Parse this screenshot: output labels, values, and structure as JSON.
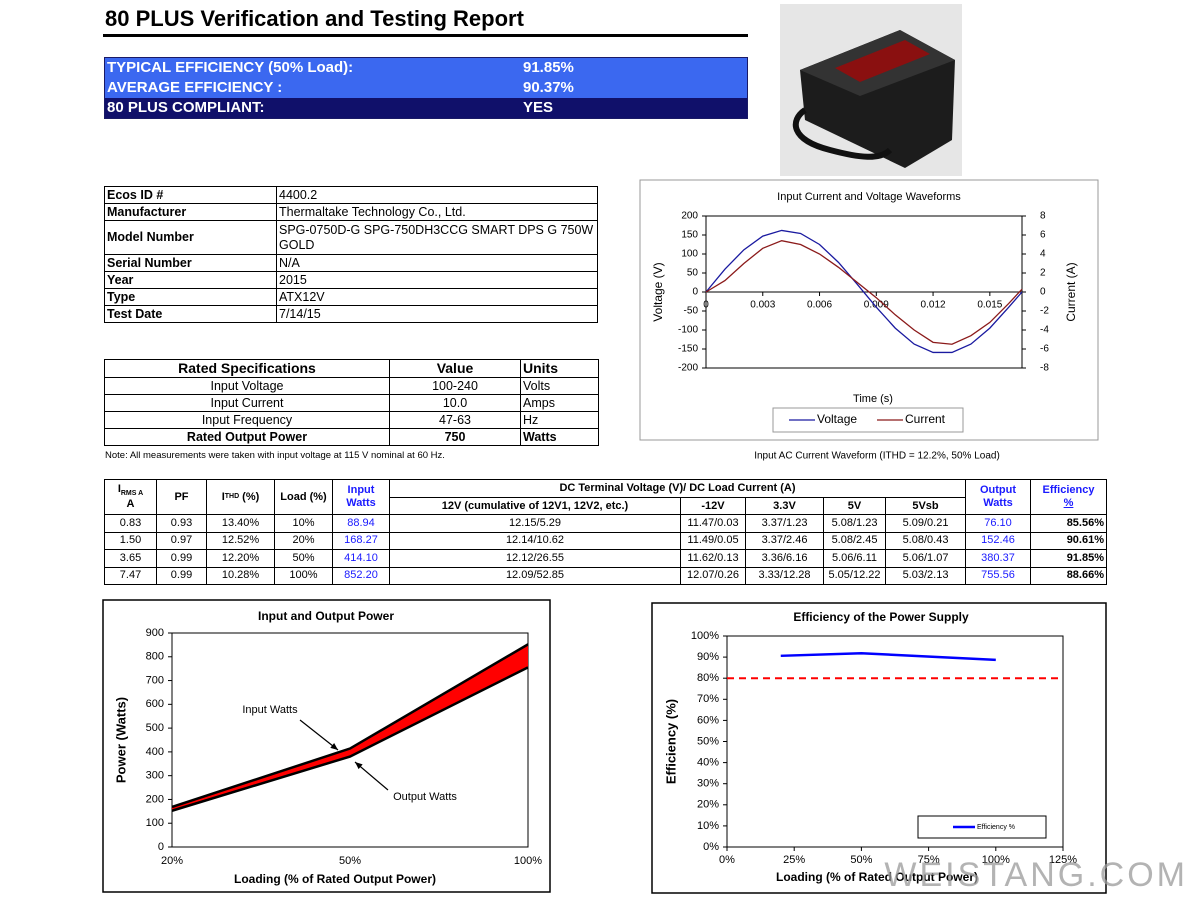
{
  "header": {
    "title": "80 PLUS Verification and Testing Report"
  },
  "summary": {
    "rows": [
      [
        "TYPICAL EFFICIENCY (50% Load):",
        "91.85%"
      ],
      [
        "AVERAGE EFFICIENCY :",
        "90.37%"
      ],
      [
        "80 PLUS COMPLIANT:",
        "YES"
      ]
    ]
  },
  "info": {
    "rows": [
      [
        "Ecos ID #",
        "4400.2"
      ],
      [
        "Manufacturer",
        "Thermaltake Technology Co., Ltd."
      ],
      [
        "Model Number",
        "SPG-0750D-G SPG-750DH3CCG SMART DPS G 750W GOLD"
      ],
      [
        "Serial Number",
        "N/A"
      ],
      [
        "Year",
        "2015"
      ],
      [
        "Type",
        "ATX12V"
      ],
      [
        "Test Date",
        "7/14/15"
      ]
    ]
  },
  "rated": {
    "header": [
      "Rated Specifications",
      "Value",
      "Units"
    ],
    "rows": [
      [
        "Input Voltage",
        "100-240",
        "Volts"
      ],
      [
        "Input Current",
        "10.0",
        "Amps"
      ],
      [
        "Input Frequency",
        "47-63",
        "Hz"
      ],
      [
        "Rated Output Power",
        "750",
        "Watts"
      ]
    ]
  },
  "note": "Note: All measurements were taken with input voltage at 115 V nominal at 60 Hz.",
  "load_table": {
    "headers": {
      "irms": {
        "main": "I",
        "sub": "RMS A",
        "unit": "A"
      },
      "pf": "PF",
      "ithd": {
        "main": "I",
        "sub": "THD",
        "unit": "(%)"
      },
      "load": "Load (%)",
      "input": "Input Watts",
      "dc_title": "DC Terminal Voltage (V)/ DC Load Current (A)",
      "dc_cols": [
        "12V (cumulative of 12V1, 12V2, etc.)",
        "-12V",
        "3.3V",
        "5V",
        "5Vsb"
      ],
      "output": "Output Watts",
      "efficiency": {
        "main": "Efficiency",
        "unit": "%"
      }
    },
    "rows": [
      [
        "0.83",
        "0.93",
        "13.40%",
        "10%",
        "88.94",
        "12.15/5.29",
        "11.47/0.03",
        "3.37/1.23",
        "5.08/1.23",
        "5.09/0.21",
        "76.10",
        "85.56%"
      ],
      [
        "1.50",
        "0.97",
        "12.52%",
        "20%",
        "168.27",
        "12.14/10.62",
        "11.49/0.05",
        "3.37/2.46",
        "5.08/2.45",
        "5.08/0.43",
        "152.46",
        "90.61%"
      ],
      [
        "3.65",
        "0.99",
        "12.20%",
        "50%",
        "414.10",
        "12.12/26.55",
        "11.62/0.13",
        "3.36/6.16",
        "5.06/6.11",
        "5.06/1.07",
        "380.37",
        "91.85%"
      ],
      [
        "7.47",
        "0.99",
        "10.28%",
        "100%",
        "852.20",
        "12.09/52.85",
        "12.07/0.26",
        "3.33/12.28",
        "5.05/12.22",
        "5.03/2.13",
        "755.56",
        "88.66%"
      ]
    ]
  },
  "watermark": "WEISTANG.COM",
  "chart_data": [
    {
      "type": "line",
      "title": "Input Current and Voltage Waveforms",
      "x_label": "Time (s)",
      "y_label": "Voltage (V)",
      "y2_label": "Current (A)",
      "caption": "Input AC Current Waveform (ITHD = 12.2%, 50% Load)",
      "x": [
        0,
        0.001,
        0.002,
        0.003,
        0.004,
        0.005,
        0.006,
        0.007,
        0.008,
        0.009,
        0.01,
        0.011,
        0.012,
        0.013,
        0.014,
        0.015,
        0.016,
        0.0167
      ],
      "series": [
        {
          "name": "Voltage",
          "color": "#1a1aa0",
          "values": [
            0,
            60,
            111,
            147,
            162,
            154,
            125,
            78,
            20,
            -40,
            -95,
            -137,
            -159,
            -159,
            -137,
            -95,
            -40,
            0
          ]
        },
        {
          "name": "Current",
          "color": "#8b1a1a",
          "axis": "y2",
          "values": [
            0,
            1.2,
            3.0,
            4.6,
            5.4,
            5.0,
            4.0,
            2.6,
            1.0,
            -0.6,
            -2.4,
            -4.0,
            -5.3,
            -5.5,
            -4.6,
            -3.2,
            -1.2,
            0.3
          ]
        }
      ],
      "xlim": [
        0,
        0.0167
      ],
      "xticks": [
        0,
        0.003,
        0.006,
        0.009,
        0.012,
        0.015
      ],
      "ylim": [
        -200,
        200
      ],
      "yticks": [
        -200,
        -150,
        -100,
        -50,
        0,
        50,
        100,
        150,
        200
      ],
      "y2lim": [
        -8,
        8
      ],
      "y2ticks": [
        -8,
        -6,
        -4,
        -2,
        0,
        2,
        4,
        6,
        8
      ],
      "legend": "bottom"
    },
    {
      "type": "area",
      "title": "Input and Output Power",
      "x_label": "Loading (% of Rated Output Power)",
      "y_label": "Power (Watts)",
      "categories": [
        "20%",
        "50%",
        "100%"
      ],
      "series": [
        {
          "name": "Input Watts",
          "color": "#000000",
          "values": [
            168.27,
            414.1,
            852.2
          ]
        },
        {
          "name": "Output Watts",
          "color": "#000000",
          "values": [
            152.46,
            380.37,
            755.56
          ]
        }
      ],
      "fill": "#ff0000",
      "ylim": [
        0,
        900
      ],
      "yticks": [
        0,
        100,
        200,
        300,
        400,
        500,
        600,
        700,
        800,
        900
      ]
    },
    {
      "type": "line",
      "title": "Efficiency of the Power Supply",
      "x_label": "Loading (% of Rated Output Power)",
      "y_label": "Efficiency (%)",
      "x": [
        20,
        50,
        100
      ],
      "series": [
        {
          "name": "Efficiency %",
          "color": "#0000ff",
          "values": [
            90.61,
            91.85,
            88.66
          ]
        }
      ],
      "xlim": [
        0,
        125
      ],
      "xticks": [
        {
          "value": 0,
          "label": "0%"
        },
        {
          "value": 25,
          "label": "25%"
        },
        {
          "value": 50,
          "label": "50%"
        },
        {
          "value": 75,
          "label": "75%"
        },
        {
          "value": 100,
          "label": "100%"
        },
        {
          "value": 125,
          "label": "125%"
        }
      ],
      "ylim": [
        0,
        100
      ],
      "yticks": [
        {
          "value": 0,
          "label": "0%"
        },
        {
          "value": 10,
          "label": "10%"
        },
        {
          "value": 20,
          "label": "20%"
        },
        {
          "value": 30,
          "label": "30%"
        },
        {
          "value": 40,
          "label": "40%"
        },
        {
          "value": 50,
          "label": "50%"
        },
        {
          "value": 60,
          "label": "60%"
        },
        {
          "value": 70,
          "label": "70%"
        },
        {
          "value": 80,
          "label": "80%"
        },
        {
          "value": 90,
          "label": "90%"
        },
        {
          "value": 100,
          "label": "100%"
        }
      ],
      "reference_line": {
        "value": 80,
        "color": "#ff0000"
      },
      "legend": "bottom-right"
    }
  ]
}
